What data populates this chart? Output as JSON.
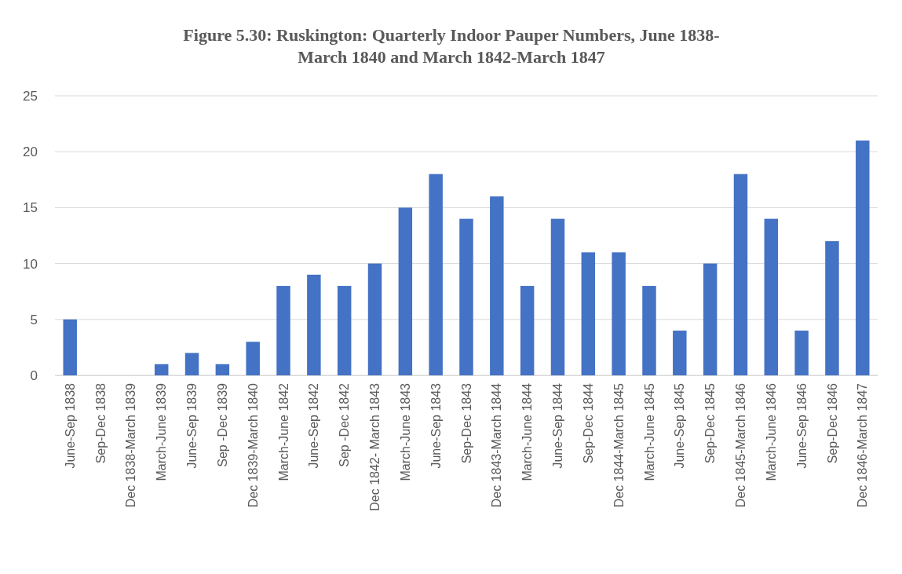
{
  "chart_data": {
    "type": "bar",
    "title": "Figure 5.30: Ruskington: Quarterly Indoor Pauper Numbers, June 1838-\nMarch 1840 and March 1842-March 1847",
    "categories": [
      "June-Sep 1838",
      "Sep-Dec 1838",
      "Dec 1838-March 1839",
      "March-June 1839",
      "June-Sep 1839",
      "Sep -Dec 1839",
      "Dec 1839-March 1840",
      "March-June 1842",
      "June-Sep 1842",
      "Sep -Dec 1842",
      "Dec 1842- March 1843",
      "March-June 1843",
      "June-Sep 1843",
      "Sep-Dec 1843",
      "Dec 1843-March 1844",
      "March-June 1844",
      "June-Sep 1844",
      "Sep-Dec 1844",
      "Dec 1844-March 1845",
      "March-June 1845",
      "June-Sep 1845",
      "Sep-Dec 1845",
      "Dec 1845-March 1846",
      "March-June 1846",
      "June-Sep 1846",
      "Sep-Dec 1846",
      "Dec 1846-March 1847"
    ],
    "values": [
      5,
      0,
      0,
      1,
      2,
      1,
      3,
      8,
      9,
      8,
      10,
      15,
      18,
      14,
      16,
      8,
      14,
      11,
      11,
      8,
      4,
      10,
      18,
      14,
      4,
      12,
      21
    ],
    "color": "#4472c4",
    "ylim": [
      0,
      25
    ],
    "yticks": [
      0,
      5,
      10,
      15,
      20,
      25
    ],
    "grid": "y"
  }
}
